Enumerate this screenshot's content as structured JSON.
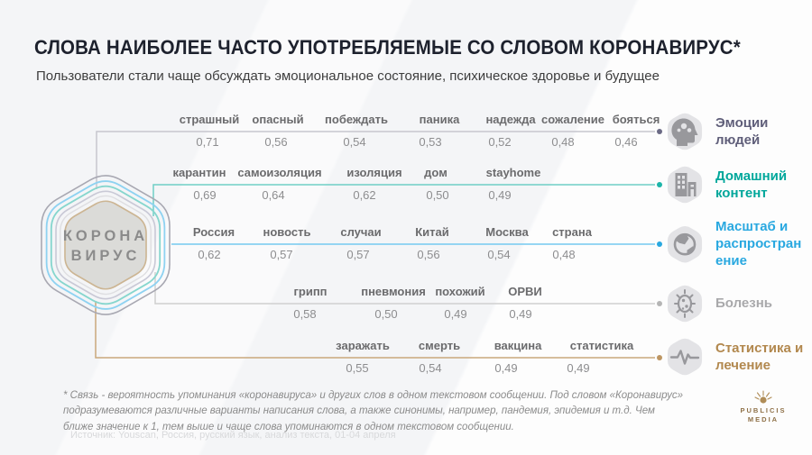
{
  "header": {
    "title": "СЛОВА НАИБОЛЕЕ ЧАСТО УПОТРЕБЛЯЕМЫЕ СО СЛОВОМ КОРОНАВИРУС*",
    "subtitle": "Пользователи стали чаще обсуждать эмоциональное состояние, психическое здоровье и будущее"
  },
  "hub": {
    "line1": "КОРОНА",
    "line2": "ВИРУС"
  },
  "chart_data": {
    "type": "table",
    "title": "СЛОВА НАИБОЛЕЕ ЧАСТО УПОТРЕБЛЯЕМЫЕ СО СЛОВОМ КОРОНАВИРУС*",
    "center_node": "КОРОНА ВИРУС",
    "value_note": "association probability, decimal comma format",
    "series": [
      {
        "name": "Эмоции людей",
        "icon": "head-gears-icon",
        "label_color": "#5f5e79",
        "line_color": "#c6c6ce",
        "dot_color": "#6b6a85",
        "words": [
          "страшный",
          "опасный",
          "побеждать",
          "паника",
          "надежда",
          "сожаление",
          "бояться"
        ],
        "values": [
          0.71,
          0.56,
          0.54,
          0.53,
          0.52,
          0.48,
          0.46
        ]
      },
      {
        "name": "Домашний контент",
        "icon": "buildings-icon",
        "label_color": "#00a79b",
        "line_color": "#6fcfc6",
        "dot_color": "#1db5a9",
        "words": [
          "карантин",
          "самоизоляция",
          "изоляция",
          "дом",
          "stayhome"
        ],
        "values": [
          0.69,
          0.64,
          0.62,
          0.5,
          0.49
        ]
      },
      {
        "name": "Масштаб и распространение",
        "icon": "globe-icon",
        "label_color": "#29a8e0",
        "line_color": "#74c9f0",
        "dot_color": "#29a8e0",
        "words": [
          "Россия",
          "новость",
          "случаи",
          "Китай",
          "Москва",
          "страна"
        ],
        "values": [
          0.62,
          0.57,
          0.57,
          0.56,
          0.54,
          0.48
        ]
      },
      {
        "name": "Болезнь",
        "icon": "germ-icon",
        "label_color": "#a9a9ab",
        "line_color": "#d0d0d0",
        "dot_color": "#b5b5b5",
        "words": [
          "грипп",
          "пневмония",
          "похожий",
          "ОРВИ"
        ],
        "values": [
          0.58,
          0.5,
          0.49,
          0.49
        ]
      },
      {
        "name": "Статистика и лечение",
        "icon": "pulse-icon",
        "label_color": "#b2884e",
        "line_color": "#c9a87c",
        "dot_color": "#bd9663",
        "words": [
          "заражать",
          "смерть",
          "вакцина",
          "статистика"
        ],
        "values": [
          0.55,
          0.54,
          0.49,
          0.49
        ]
      }
    ]
  },
  "footnote": "* Связь - вероятность упоминания «коронавируса» и других слов в одном текстовом сообщении. Под словом «Коронавирус» подразумеваются различные варианты написания слова, а также синонимы, например, пандемия, эпидемия и т.д. Чем ближе значение к 1, тем выше и чаще слова упоминаются в одном текстовом сообщении.",
  "source": "Источник: Youscan, Россия, русский язык, анализ текста, 01-04 апреля",
  "logo": {
    "company": "PUBLICIS",
    "division": "MEDIA"
  }
}
